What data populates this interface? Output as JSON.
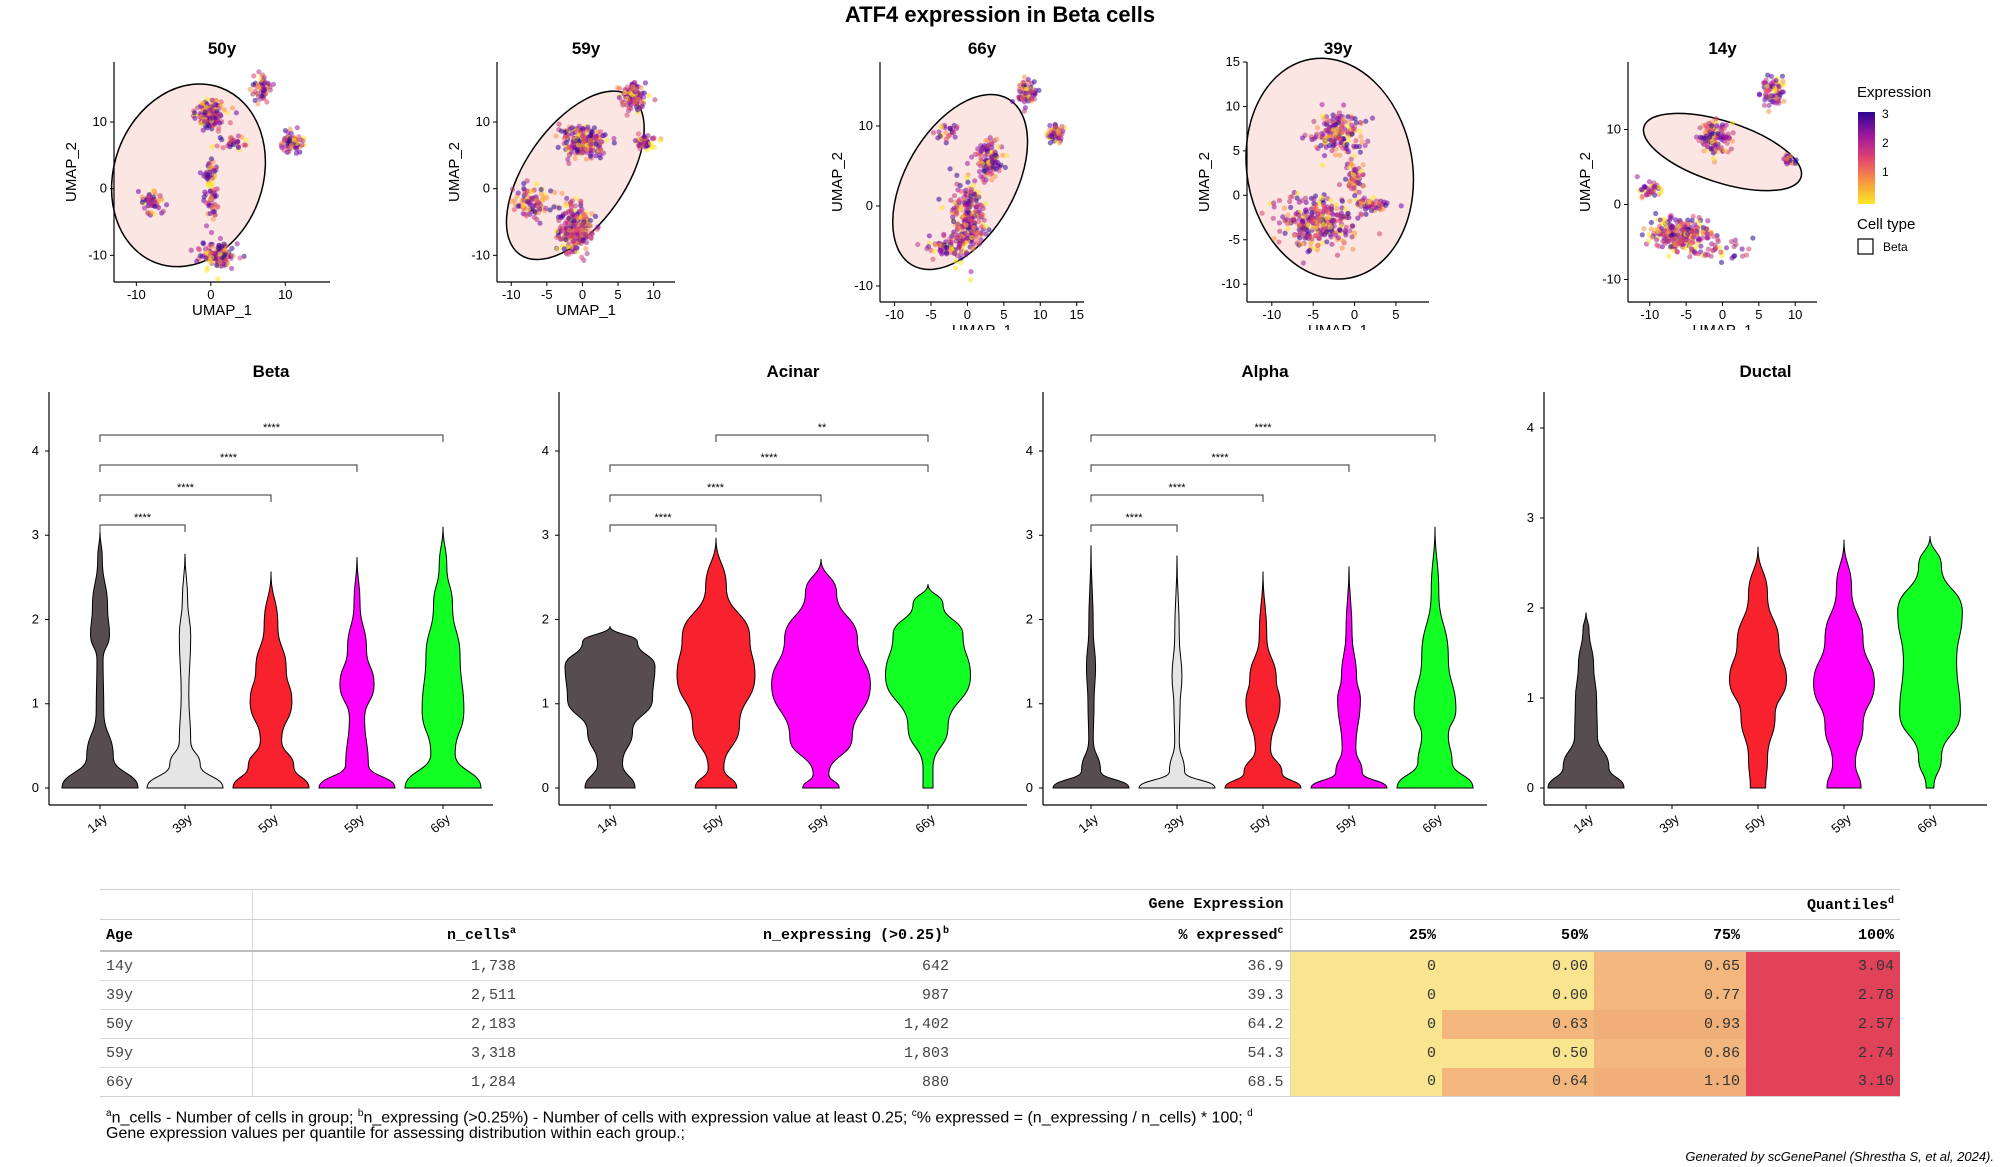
{
  "title": "ATF4 expression in Beta cells",
  "colors": {
    "14y": "#574d50",
    "39y": "#e5e5e5",
    "50y": "#f8222e",
    "59y": "#ff00ff",
    "66y": "#11ff22",
    "quantile_low": "#f9e58f",
    "quantile_mid": "#f3b77d",
    "quantile_high": "#e0425a",
    "ellipse_fill": "#fbe6e4"
  },
  "umap": {
    "xlabel": "UMAP_1",
    "ylabel": "UMAP_2",
    "panels": [
      {
        "title": "50y",
        "xticks": [
          -10,
          0,
          10
        ],
        "yticks": [
          -10,
          0,
          10
        ],
        "xlim": [
          -13,
          16
        ],
        "ylim": [
          -14,
          19
        ]
      },
      {
        "title": "59y",
        "xticks": [
          -10,
          -5,
          0,
          5,
          10
        ],
        "yticks": [
          -10,
          0,
          10
        ],
        "xlim": [
          -12,
          13
        ],
        "ylim": [
          -14,
          19
        ]
      },
      {
        "title": "66y",
        "xticks": [
          -10,
          -5,
          0,
          5,
          10,
          15
        ],
        "yticks": [
          -10,
          0,
          10
        ],
        "xlim": [
          -12,
          16
        ],
        "ylim": [
          -12,
          18
        ]
      },
      {
        "title": "39y",
        "xticks": [
          -10,
          -5,
          0,
          5
        ],
        "yticks": [
          -10,
          -5,
          0,
          5,
          10,
          15
        ],
        "xlim": [
          -13,
          9
        ],
        "ylim": [
          -12,
          15
        ]
      },
      {
        "title": "14y",
        "xticks": [
          -10,
          -5,
          0,
          5,
          10
        ],
        "yticks": [
          -10,
          0,
          10
        ],
        "xlim": [
          -13,
          13
        ],
        "ylim": [
          -13,
          19
        ]
      }
    ],
    "legend": {
      "expression_title": "Expression",
      "expression_ticks": [
        "3",
        "2",
        "1"
      ],
      "celltype_title": "Cell type",
      "celltype_entry": "Beta"
    }
  },
  "chart_data": [
    {
      "type": "violin",
      "title": "Beta",
      "categories": [
        "14y",
        "39y",
        "50y",
        "59y",
        "66y"
      ],
      "ylim": [
        0,
        4.7
      ],
      "yticks": [
        0,
        1,
        2,
        3,
        4
      ],
      "max": [
        3.04,
        2.78,
        2.57,
        2.74,
        3.1
      ],
      "significance": [
        {
          "from": "14y",
          "to": "39y",
          "label": "****"
        },
        {
          "from": "14y",
          "to": "50y",
          "label": "****"
        },
        {
          "from": "14y",
          "to": "59y",
          "label": "****"
        },
        {
          "from": "14y",
          "to": "66y",
          "label": "****"
        }
      ]
    },
    {
      "type": "violin",
      "title": "Acinar",
      "categories": [
        "14y",
        "50y",
        "59y",
        "66y"
      ],
      "ylim": [
        0,
        4.7
      ],
      "yticks": [
        0,
        1,
        2,
        3,
        4
      ],
      "max": [
        1.92,
        2.97,
        2.72,
        2.42
      ],
      "significance": [
        {
          "from": "14y",
          "to": "50y",
          "label": "****"
        },
        {
          "from": "14y",
          "to": "59y",
          "label": "****"
        },
        {
          "from": "14y",
          "to": "66y",
          "label": "****"
        },
        {
          "from": "50y",
          "to": "66y",
          "label": "**"
        }
      ]
    },
    {
      "type": "violin",
      "title": "Alpha",
      "categories": [
        "14y",
        "39y",
        "50y",
        "59y",
        "66y"
      ],
      "ylim": [
        0,
        4.7
      ],
      "yticks": [
        0,
        1,
        2,
        3,
        4
      ],
      "max": [
        2.88,
        2.76,
        2.57,
        2.63,
        3.1
      ],
      "significance": [
        {
          "from": "14y",
          "to": "39y",
          "label": "****"
        },
        {
          "from": "14y",
          "to": "50y",
          "label": "****"
        },
        {
          "from": "14y",
          "to": "59y",
          "label": "****"
        },
        {
          "from": "14y",
          "to": "66y",
          "label": "****"
        }
      ]
    },
    {
      "type": "violin",
      "title": "Ductal",
      "categories": [
        "14y",
        "39y",
        "50y",
        "59y",
        "66y"
      ],
      "ylim": [
        0,
        4.4
      ],
      "yticks": [
        0,
        1,
        2,
        3,
        4
      ],
      "max": [
        1.95,
        null,
        2.68,
        2.76,
        2.8
      ],
      "significance": []
    },
    {
      "type": "table",
      "spanners": {
        "gene_expression": "Gene Expression",
        "quantiles": "Quantiles"
      },
      "columns": [
        "Age",
        "n_cells",
        "n_expressing (>0.25)",
        "% expressed",
        "25%",
        "50%",
        "75%",
        "100%"
      ],
      "column_marks": [
        "",
        "a",
        "b",
        "c",
        "",
        "",
        "",
        ""
      ],
      "spanner_mark": "d",
      "rows": [
        {
          "age": "14y",
          "n_cells": "1,738",
          "n_expressing": "642",
          "pct": "36.9",
          "q25": "0",
          "q50": "0.00",
          "q75": "0.65",
          "q100": "3.04"
        },
        {
          "age": "39y",
          "n_cells": "2,511",
          "n_expressing": "987",
          "pct": "39.3",
          "q25": "0",
          "q50": "0.00",
          "q75": "0.77",
          "q100": "2.78"
        },
        {
          "age": "50y",
          "n_cells": "2,183",
          "n_expressing": "1,402",
          "pct": "64.2",
          "q25": "0",
          "q50": "0.63",
          "q75": "0.93",
          "q100": "2.57"
        },
        {
          "age": "59y",
          "n_cells": "3,318",
          "n_expressing": "1,803",
          "pct": "54.3",
          "q25": "0",
          "q50": "0.50",
          "q75": "0.86",
          "q100": "2.74"
        },
        {
          "age": "66y",
          "n_cells": "1,284",
          "n_expressing": "880",
          "pct": "68.5",
          "q25": "0",
          "q50": "0.64",
          "q75": "1.10",
          "q100": "3.10"
        }
      ]
    }
  ],
  "footnote": {
    "mark_a": "a",
    "part_a": "n_cells - Number of cells in group; ",
    "mark_b": "b",
    "part_b": "n_expressing (>0.25%) - Number of cells with expression value at least 0.25; ",
    "mark_c": "c",
    "part_c": "% expressed = (n_expressing / n_cells) * 100; ",
    "mark_d": "d",
    "line2": "Gene expression values per quantile for assessing distribution within each group.;"
  },
  "credit": "Generated by scGenePanel (Shrestha S, et al, 2024)."
}
